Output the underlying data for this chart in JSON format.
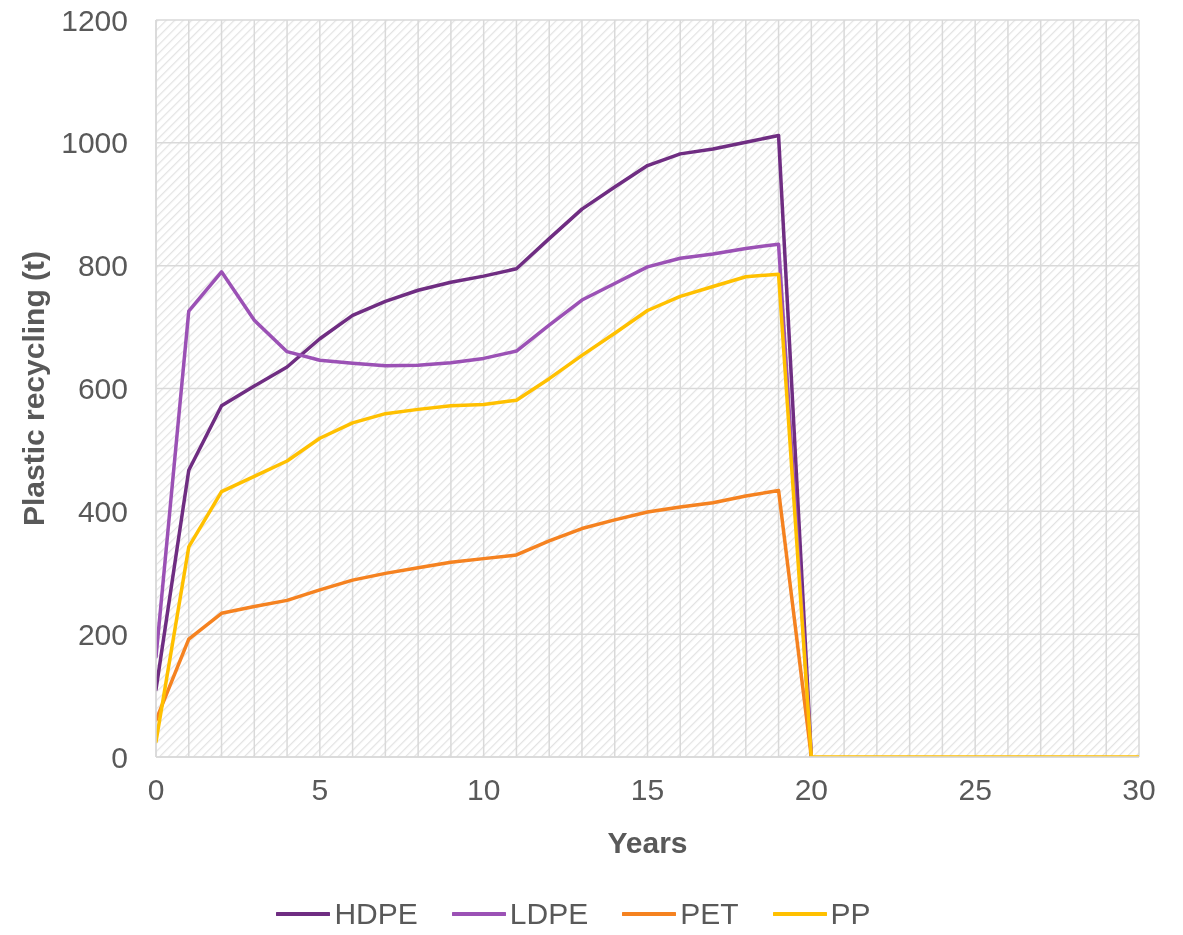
{
  "chart_data": {
    "type": "line",
    "xlabel": "Years",
    "ylabel": "Plastic recycling (t)",
    "x": [
      0,
      1,
      2,
      3,
      4,
      5,
      6,
      7,
      8,
      9,
      10,
      11,
      12,
      13,
      14,
      15,
      16,
      17,
      18,
      19,
      20,
      21,
      22,
      23,
      24,
      25,
      26,
      27,
      28,
      29,
      30
    ],
    "series": [
      {
        "name": "HDPE",
        "color": "#6f2d82",
        "values": [
          110,
          467,
          572,
          604,
          635,
          681,
          719,
          742,
          760,
          773,
          783,
          795,
          844,
          892,
          928,
          963,
          982,
          990,
          1001,
          1012,
          0,
          null,
          null,
          null,
          null,
          null,
          null,
          null,
          null,
          null,
          null
        ]
      },
      {
        "name": "LDPE",
        "color": "#9b51b5",
        "values": [
          163,
          726,
          790,
          711,
          660,
          646,
          641,
          637,
          638,
          642,
          649,
          661,
          703,
          744,
          771,
          798,
          812,
          819,
          828,
          835,
          0,
          null,
          null,
          null,
          null,
          null,
          null,
          null,
          null,
          null,
          null
        ]
      },
      {
        "name": "PET",
        "color": "#f58220",
        "values": [
          60,
          192,
          234,
          245,
          255,
          272,
          288,
          299,
          308,
          317,
          323,
          329,
          352,
          372,
          386,
          399,
          407,
          414,
          425,
          434,
          0,
          null,
          null,
          null,
          null,
          null,
          null,
          null,
          null,
          null,
          null
        ]
      },
      {
        "name": "PP",
        "color": "#ffc000",
        "values": [
          25,
          342,
          432,
          457,
          482,
          519,
          544,
          559,
          566,
          572,
          574,
          581,
          616,
          654,
          690,
          727,
          750,
          766,
          782,
          786,
          0,
          0,
          0,
          0,
          0,
          0,
          0,
          0,
          0,
          0,
          0
        ]
      }
    ],
    "xlim": [
      0,
      30
    ],
    "xticks": [
      0,
      {
        "value": 1,
        "label": null
      },
      {
        "value": 2,
        "label": null
      },
      {
        "value": 3,
        "label": null
      },
      {
        "value": 4,
        "label": null
      },
      5,
      {
        "value": 6,
        "label": null
      },
      {
        "value": 7,
        "label": null
      },
      {
        "value": 8,
        "label": null
      },
      {
        "value": 9,
        "label": null
      },
      10,
      {
        "value": 11,
        "label": null
      },
      {
        "value": 12,
        "label": null
      },
      {
        "value": 13,
        "label": null
      },
      {
        "value": 14,
        "label": null
      },
      15,
      {
        "value": 16,
        "label": null
      },
      {
        "value": 17,
        "label": null
      },
      {
        "value": 18,
        "label": null
      },
      {
        "value": 19,
        "label": null
      },
      20,
      {
        "value": 21,
        "label": null
      },
      {
        "value": 22,
        "label": null
      },
      {
        "value": 23,
        "label": null
      },
      {
        "value": 24,
        "label": null
      },
      25,
      {
        "value": 26,
        "label": null
      },
      {
        "value": 27,
        "label": null
      },
      {
        "value": 28,
        "label": null
      },
      {
        "value": 29,
        "label": null
      },
      30
    ],
    "ylim": [
      0,
      1200
    ],
    "yticks": [
      0,
      200,
      400,
      600,
      800,
      1000,
      1200
    ],
    "grid": true,
    "legend": "bottom",
    "marker": "none",
    "line_style": "solid"
  }
}
